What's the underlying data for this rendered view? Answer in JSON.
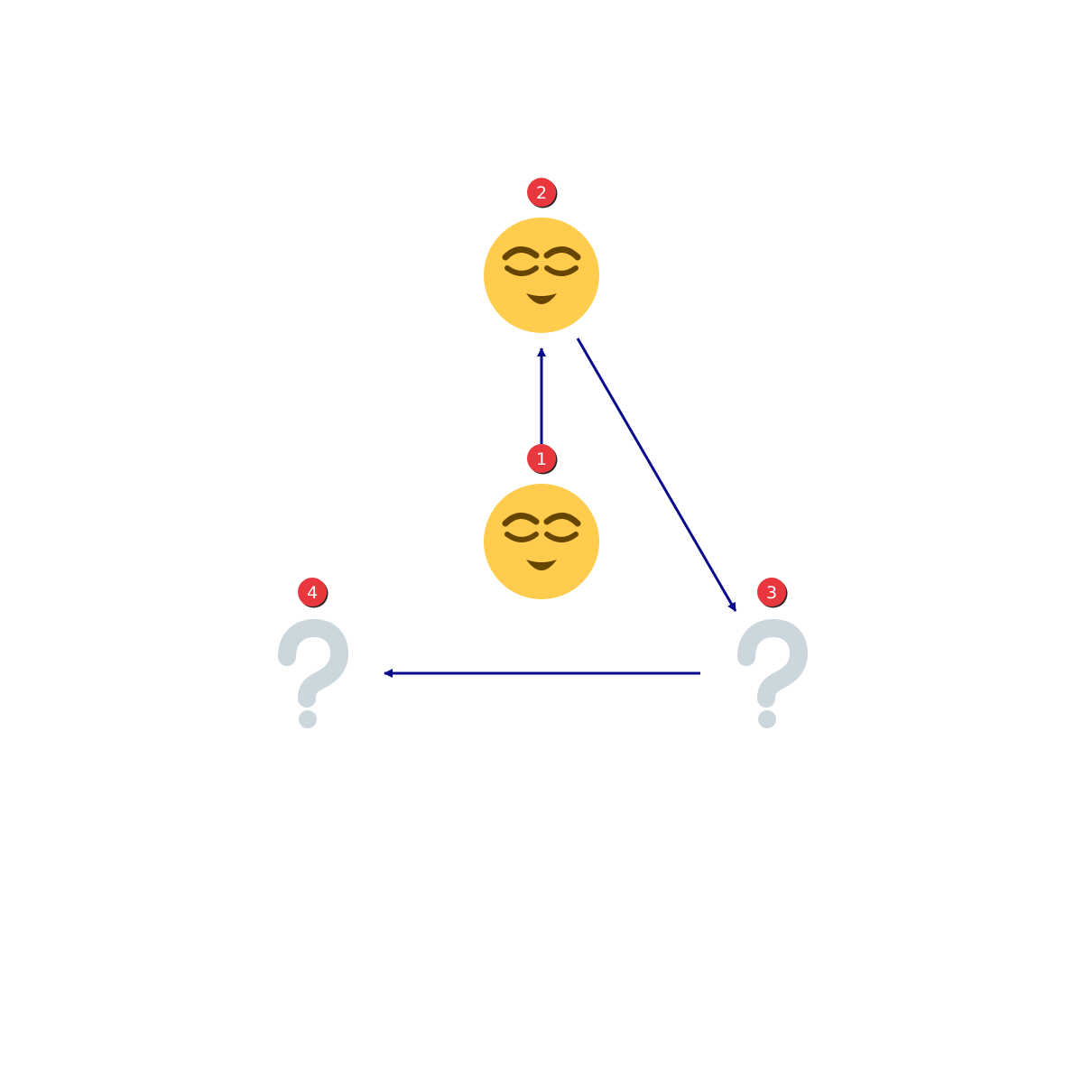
{
  "diagram": {
    "nodes": [
      {
        "id": "1",
        "label": "1",
        "symbol": "relieved-face"
      },
      {
        "id": "2",
        "label": "2",
        "symbol": "relieved-face"
      },
      {
        "id": "3",
        "label": "3",
        "symbol": "question-mark"
      },
      {
        "id": "4",
        "label": "4",
        "symbol": "question-mark"
      }
    ],
    "edges": [
      {
        "from": "1",
        "to": "2"
      },
      {
        "from": "2",
        "to": "3"
      },
      {
        "from": "3",
        "to": "4"
      }
    ]
  },
  "colors": {
    "arrow": "#0a0a8c",
    "badge": "#e8383d",
    "face": "#ffcc4d",
    "face_features": "#664500",
    "question": "#ccd6dd"
  }
}
